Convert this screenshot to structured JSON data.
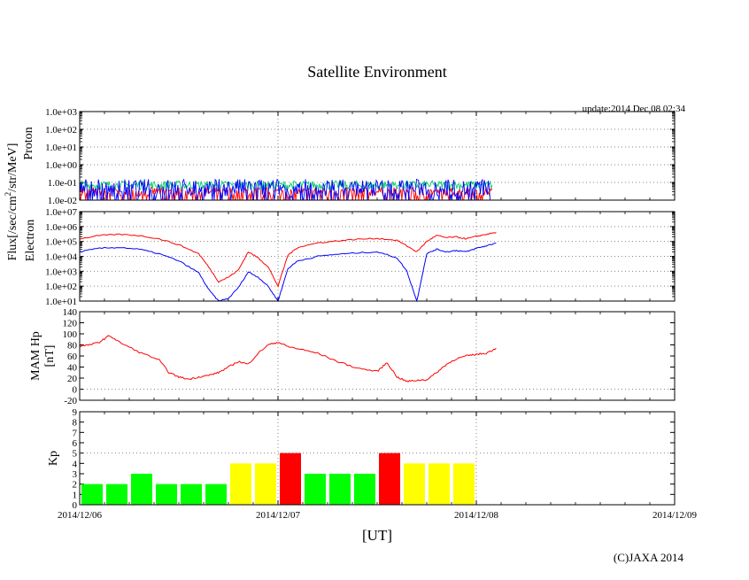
{
  "title": "Satellite Environment",
  "update": "update:2014 Dec 08 02:34",
  "copyright": "(C)JAXA 2014",
  "xlabel": "[UT]",
  "x_ticks": [
    "2014/12/06",
    "2014/12/07",
    "2014/12/08",
    "2014/12/09"
  ],
  "flux_label": "Flux[/sec/cm2/str/MeV]",
  "colors": {
    "red": "#ff0000",
    "blue": "#0000ff",
    "green": "#00cc66",
    "kp_green": "#00ff00",
    "kp_yellow": "#ffff00",
    "kp_red": "#ff0000"
  },
  "chart_data": [
    {
      "type": "line",
      "name": "proton",
      "ylabel": "Proton",
      "yscale": "log",
      "ylim": [
        0.01,
        1000
      ],
      "y_ticks": [
        "1.0e-02",
        "1.0e-01",
        "1.0e+00",
        "1.0e+01",
        "1.0e+02",
        "1.0e+03"
      ],
      "xlim_days": [
        0,
        3
      ],
      "series": [
        {
          "name": "proton-1",
          "color": "red",
          "x": [
            0,
            0.5,
            1.0,
            1.5,
            2.0,
            2.08
          ],
          "y": [
            0.03,
            0.04,
            0.03,
            0.04,
            0.03,
            0.03
          ]
        },
        {
          "name": "proton-2",
          "color": "green",
          "x": [
            0,
            0.5,
            1.0,
            1.5,
            2.0,
            2.08
          ],
          "y": [
            0.07,
            0.07,
            0.07,
            0.07,
            0.07,
            0.07
          ]
        },
        {
          "name": "proton-3",
          "color": "blue",
          "x": [
            0,
            0.5,
            1.0,
            1.5,
            2.0,
            2.08
          ],
          "y": [
            0.05,
            0.05,
            0.05,
            0.05,
            0.05,
            0.05
          ]
        }
      ]
    },
    {
      "type": "line",
      "name": "electron",
      "ylabel": "Electron",
      "yscale": "log",
      "ylim": [
        10,
        10000000
      ],
      "y_ticks": [
        "1.0e+01",
        "1.0e+02",
        "1.0e+03",
        "1.0e+04",
        "1.0e+05",
        "1.0e+06",
        "1.0e+07"
      ],
      "xlim_days": [
        0,
        3
      ],
      "series": [
        {
          "name": "electron-high",
          "color": "red",
          "x": [
            0,
            0.1,
            0.2,
            0.3,
            0.4,
            0.5,
            0.6,
            0.65,
            0.7,
            0.75,
            0.8,
            0.85,
            0.9,
            0.95,
            1.0,
            1.05,
            1.1,
            1.2,
            1.3,
            1.4,
            1.5,
            1.6,
            1.65,
            1.7,
            1.75,
            1.8,
            1.85,
            1.9,
            1.95,
            2.0,
            2.05,
            2.1
          ],
          "y": [
            150000,
            250000,
            300000,
            250000,
            150000,
            60000,
            15000,
            2000,
            200,
            400,
            1200,
            20000,
            8000,
            2000,
            100,
            12000,
            40000,
            80000,
            110000,
            140000,
            160000,
            120000,
            50000,
            20000,
            100000,
            250000,
            180000,
            200000,
            150000,
            220000,
            300000,
            400000
          ]
        },
        {
          "name": "electron-low",
          "color": "blue",
          "x": [
            0,
            0.1,
            0.2,
            0.3,
            0.4,
            0.5,
            0.6,
            0.65,
            0.7,
            0.75,
            0.8,
            0.85,
            0.9,
            0.95,
            1.0,
            1.05,
            1.1,
            1.2,
            1.3,
            1.4,
            1.5,
            1.6,
            1.65,
            1.7,
            1.75,
            1.8,
            1.85,
            1.9,
            1.95,
            2.0,
            2.05,
            2.1
          ],
          "y": [
            20000,
            35000,
            40000,
            30000,
            15000,
            5000,
            800,
            60,
            10,
            15,
            80,
            900,
            400,
            100,
            10,
            1500,
            5000,
            10000,
            14000,
            17000,
            20000,
            8000,
            1000,
            10,
            15000,
            30000,
            20000,
            25000,
            20000,
            35000,
            50000,
            80000
          ]
        }
      ]
    },
    {
      "type": "line",
      "name": "mam-hp",
      "ylabel": "MAM Hp",
      "ylabel2": "[nT]",
      "ylim": [
        -20,
        140
      ],
      "y_ticks": [
        "-20",
        "0",
        "20",
        "40",
        "60",
        "80",
        "100",
        "120",
        "140"
      ],
      "xlim_days": [
        0,
        3
      ],
      "series": [
        {
          "name": "hp",
          "color": "red",
          "x": [
            0,
            0.05,
            0.1,
            0.15,
            0.2,
            0.3,
            0.4,
            0.45,
            0.5,
            0.55,
            0.6,
            0.65,
            0.7,
            0.75,
            0.8,
            0.85,
            0.9,
            0.95,
            1.0,
            1.05,
            1.1,
            1.2,
            1.3,
            1.4,
            1.5,
            1.55,
            1.6,
            1.65,
            1.7,
            1.75,
            1.8,
            1.85,
            1.9,
            1.95,
            2.0,
            2.05,
            2.1
          ],
          "y": [
            78,
            80,
            85,
            97,
            85,
            67,
            53,
            30,
            22,
            18,
            22,
            25,
            30,
            40,
            50,
            45,
            65,
            80,
            85,
            77,
            73,
            65,
            50,
            38,
            32,
            48,
            22,
            14,
            16,
            17,
            30,
            45,
            55,
            60,
            63,
            65,
            74
          ]
        }
      ]
    },
    {
      "type": "bar",
      "name": "kp",
      "ylabel": "Kp",
      "ylim": [
        0,
        9
      ],
      "y_ticks": [
        "0",
        "1",
        "2",
        "3",
        "4",
        "5",
        "6",
        "7",
        "8",
        "9"
      ],
      "xlim_days": [
        0,
        3
      ],
      "bar_width_days": 0.125,
      "values": [
        2,
        2,
        3,
        2,
        2,
        2,
        4,
        4,
        5,
        3,
        3,
        3,
        5,
        4,
        4,
        4
      ],
      "colors": [
        "kp_green",
        "kp_green",
        "kp_green",
        "kp_green",
        "kp_green",
        "kp_green",
        "kp_yellow",
        "kp_yellow",
        "kp_red",
        "kp_green",
        "kp_green",
        "kp_green",
        "kp_red",
        "kp_yellow",
        "kp_yellow",
        "kp_yellow"
      ]
    }
  ]
}
